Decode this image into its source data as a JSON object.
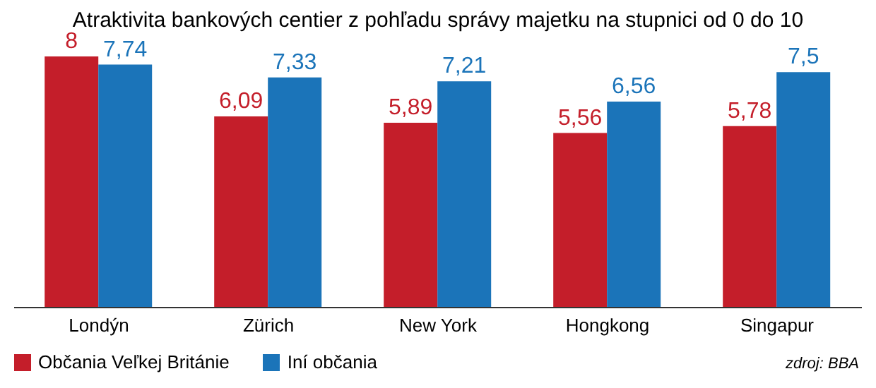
{
  "chart_data": {
    "type": "bar",
    "title": "Atraktivita bankových centier z pohľadu správy majetku na stupnici od 0 do 10",
    "categories": [
      "Londýn",
      "Zürich",
      "New York",
      "Hongkong",
      "Singapur"
    ],
    "legend": "bottom left",
    "annotations": [
      "zdroj: BBA"
    ],
    "series": [
      {
        "name": "Občania Veľkej Británie",
        "color": "#c41e2a",
        "values": [
          8,
          6.09,
          5.89,
          5.56,
          5.78
        ],
        "value_labels": [
          "8",
          "6,09",
          "5,89",
          "5,56",
          "5,78"
        ]
      },
      {
        "name": "Iní občania",
        "color": "#1b74b9",
        "values": [
          7.74,
          7.33,
          7.21,
          6.56,
          7.5
        ],
        "value_labels": [
          "7,74",
          "7,33",
          "7,21",
          "6,56",
          "7,5"
        ]
      }
    ]
  }
}
